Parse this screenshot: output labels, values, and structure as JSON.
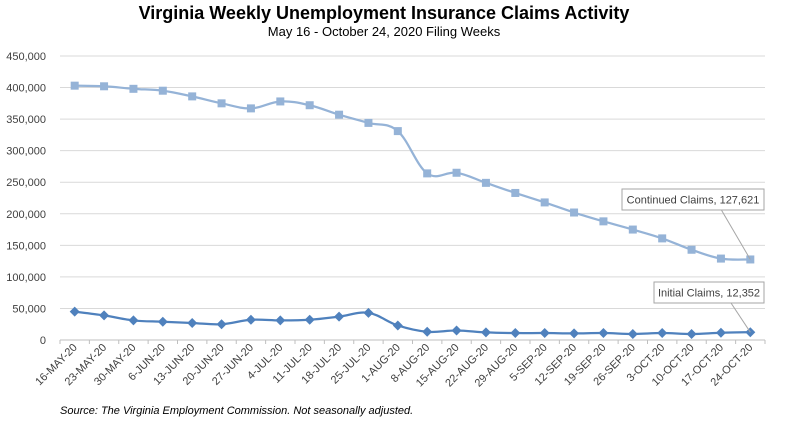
{
  "chart_data": {
    "type": "line",
    "title": "Virginia Weekly Unemployment Insurance Claims Activity",
    "subtitle": "May 16 - October 24, 2020 Filing Weeks",
    "source": "Source: The Virginia Employment Commission. Not seasonally adjusted.",
    "ylim": [
      0,
      450000
    ],
    "yticks": [
      "0",
      "50,000",
      "100,000",
      "150,000",
      "200,000",
      "250,000",
      "300,000",
      "350,000",
      "400,000",
      "450,000"
    ],
    "ytick_values": [
      0,
      50000,
      100000,
      150000,
      200000,
      250000,
      300000,
      350000,
      400000,
      450000
    ],
    "grid": "horizontal",
    "categories": [
      "16-MAY-20",
      "23-MAY-20",
      "30-MAY-20",
      "6-JUN-20",
      "13-JUN-20",
      "20-JUN-20",
      "27-JUN-20",
      "4-JUL-20",
      "11-JUL-20",
      "18-JUL-20",
      "25-JUL-20",
      "1-AUG-20",
      "8-AUG-20",
      "15-AUG-20",
      "22-AUG-20",
      "29-AUG-20",
      "5-SEP-20",
      "12-SEP-20",
      "19-SEP-20",
      "26-SEP-20",
      "3-OCT-20",
      "10-OCT-20",
      "17-OCT-20",
      "24-OCT-20"
    ],
    "series": [
      {
        "name": "Continued Claims",
        "color": "#95b3d7",
        "marker": "square",
        "callout": "Continued Claims, 127,621",
        "values": [
          403000,
          402000,
          398000,
          395000,
          386000,
          375000,
          367000,
          378000,
          372000,
          357000,
          344000,
          331000,
          264000,
          265000,
          249000,
          233000,
          218000,
          202000,
          188000,
          175000,
          161000,
          143000,
          129000,
          127621
        ]
      },
      {
        "name": "Initial Claims",
        "color": "#4f81bd",
        "marker": "diamond",
        "callout": "Initial Claims, 12,352",
        "values": [
          45000,
          39000,
          31000,
          29000,
          27000,
          25000,
          32000,
          31000,
          32000,
          37000,
          43000,
          23000,
          13000,
          15000,
          12000,
          11000,
          11000,
          10500,
          11000,
          9500,
          11000,
          9500,
          11500,
          12352
        ]
      }
    ]
  }
}
